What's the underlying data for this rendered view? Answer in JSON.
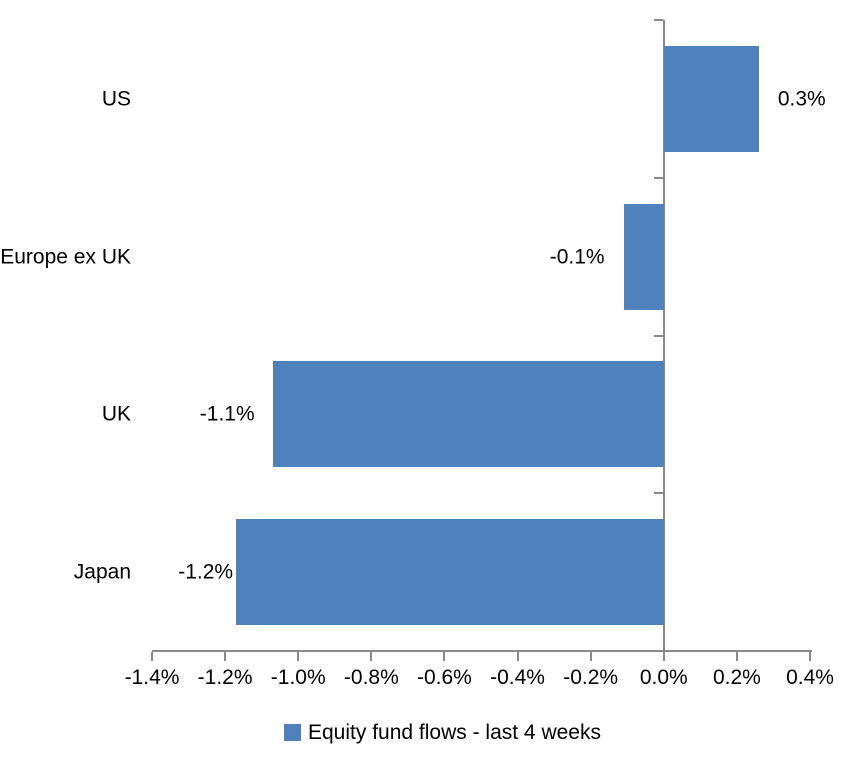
{
  "chart_data": {
    "type": "bar",
    "orientation": "horizontal",
    "title": "",
    "xlabel": "",
    "ylabel": "",
    "grid": false,
    "categories": [
      "US",
      "Europe ex UK",
      "UK",
      "Japan"
    ],
    "series": [
      {
        "name": "Equity fund flows - last 4 weeks",
        "values": [
          0.3,
          -0.1,
          -1.1,
          -1.2
        ]
      }
    ],
    "values_precise_pct": [
      0.26,
      -0.11,
      -1.07,
      -1.17
    ],
    "data_labels": [
      "0.3%",
      "-0.1%",
      "-1.1%",
      "-1.2%"
    ],
    "x_axis": {
      "min": -1.4,
      "max": 0.4,
      "tick_step": 0.2,
      "ticks": [
        {
          "value": -1.4,
          "label": "-1.4%"
        },
        {
          "value": -1.2,
          "label": "-1.2%"
        },
        {
          "value": -1.0,
          "label": "-1.0%"
        },
        {
          "value": -0.8,
          "label": "-0.8%"
        },
        {
          "value": -0.6,
          "label": "-0.6%"
        },
        {
          "value": -0.4,
          "label": "-0.4%"
        },
        {
          "value": -0.2,
          "label": "-0.2%"
        },
        {
          "value": 0.0,
          "label": "0.0%"
        },
        {
          "value": 0.2,
          "label": "0.2%"
        },
        {
          "value": 0.4,
          "label": "0.4%"
        }
      ]
    },
    "legend": {
      "position": "bottom",
      "label": "Equity fund flows - last 4 weeks"
    },
    "colors": {
      "bar": "#4F81BD",
      "axis": "#898989",
      "text": "#000000",
      "background": "#FFFFFF"
    }
  }
}
